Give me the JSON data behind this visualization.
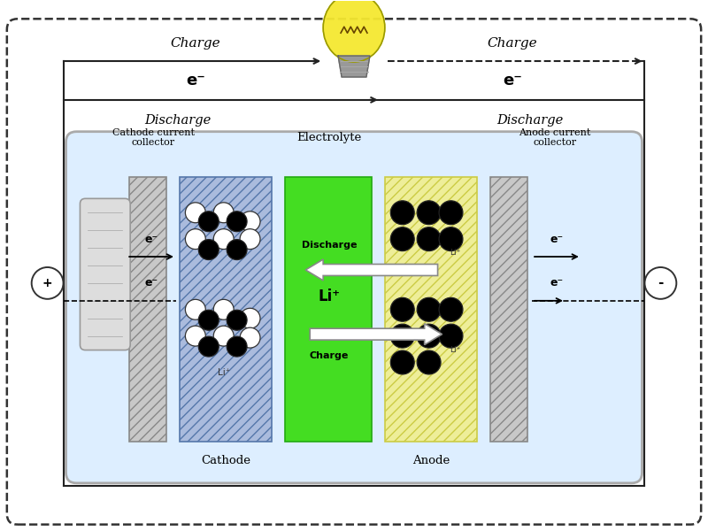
{
  "fig_w": 8.0,
  "fig_h": 6.0,
  "dpi": 100,
  "bg": "#ffffff",
  "outer_dash_color": "#333333",
  "inner_box_color": "#ddeeff",
  "inner_box_edge": "#aaaaaa",
  "cathode_current_fc": "#cccccc",
  "cathode_fc": "#bbccee",
  "electrolyte_fc": "#44dd22",
  "electrolyte_ec": "#22aa11",
  "anode_fc": "#eeee99",
  "anode_ec": "#cccc44",
  "anode_current_fc": "#cccccc",
  "hatch_color": "#6699bb",
  "wire_color": "#222222",
  "charge_label": "Charge",
  "discharge_label": "Discharge",
  "e_label": "e⁻",
  "cathode_cc_label": "Cathode current\ncollector",
  "anode_cc_label": "Anode current\ncollector",
  "electrolyte_label": "Electrolyte",
  "cathode_label": "Cathode",
  "anode_label": "Anode",
  "li_plus": "Li⁺",
  "discharge_text": "Discharge",
  "charge_text": "Charge",
  "plus_sym": "+",
  "minus_sym": "-"
}
